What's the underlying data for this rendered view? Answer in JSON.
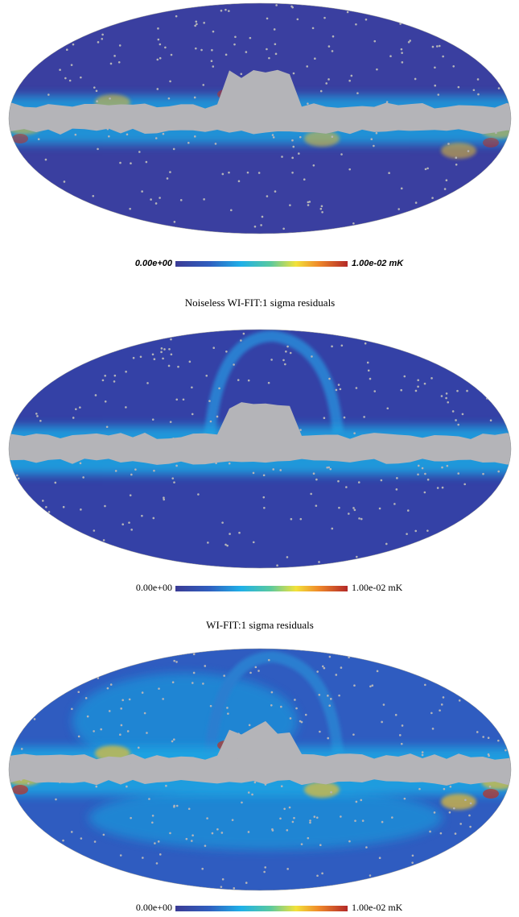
{
  "panels": [
    {
      "colorbar": {
        "min_label": "0.00e+00",
        "max_label": "1.00e-02 mK"
      }
    },
    {
      "title": "Noiseless WI-FIT:1 sigma residuals",
      "colorbar": {
        "min_label": "0.00e+00",
        "max_label": "1.00e-02 mK"
      }
    },
    {
      "title": "WI-FIT:1 sigma residuals",
      "colorbar": {
        "min_label": "0.00e+00",
        "max_label": "1.00e-02 mK"
      }
    }
  ]
}
